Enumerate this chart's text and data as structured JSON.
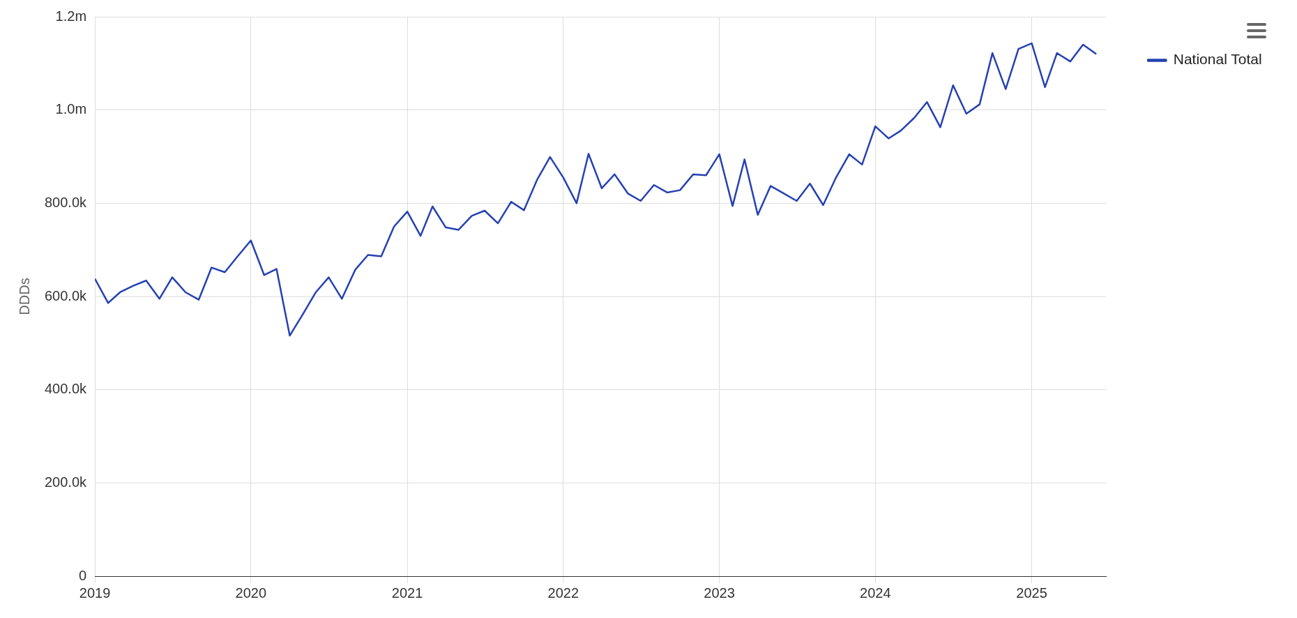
{
  "chart_data": {
    "type": "line",
    "ylabel": "DDDs",
    "x": [
      "2019-01",
      "2019-02",
      "2019-03",
      "2019-04",
      "2019-05",
      "2019-06",
      "2019-07",
      "2019-08",
      "2019-09",
      "2019-10",
      "2019-11",
      "2019-12",
      "2020-01",
      "2020-02",
      "2020-03",
      "2020-04",
      "2020-05",
      "2020-06",
      "2020-07",
      "2020-08",
      "2020-09",
      "2020-10",
      "2020-11",
      "2020-12",
      "2021-01",
      "2021-02",
      "2021-03",
      "2021-04",
      "2021-05",
      "2021-06",
      "2021-07",
      "2021-08",
      "2021-09",
      "2021-10",
      "2021-11",
      "2021-12",
      "2022-01",
      "2022-02",
      "2022-03",
      "2022-04",
      "2022-05",
      "2022-06",
      "2022-07",
      "2022-08",
      "2022-09",
      "2022-10",
      "2022-11",
      "2022-12",
      "2023-01",
      "2023-02",
      "2023-03",
      "2023-04",
      "2023-05",
      "2023-06",
      "2023-07",
      "2023-08",
      "2023-09",
      "2023-10",
      "2023-11",
      "2023-12",
      "2024-01",
      "2024-02",
      "2024-03",
      "2024-04",
      "2024-05",
      "2024-06",
      "2024-07",
      "2024-08",
      "2024-09",
      "2024-10",
      "2024-11",
      "2024-12",
      "2025-01",
      "2025-02",
      "2025-03",
      "2025-04",
      "2025-05",
      "2025-06"
    ],
    "series": [
      {
        "name": "National Total",
        "color": "#2541b2",
        "values": [
          638000,
          586000,
          609000,
          623000,
          634000,
          595000,
          641000,
          609000,
          593000,
          662000,
          652000,
          686000,
          720000,
          646000,
          659000,
          516000,
          561000,
          609000,
          641000,
          595000,
          657000,
          689000,
          686000,
          750000,
          782000,
          730000,
          793000,
          748000,
          743000,
          773000,
          784000,
          757000,
          803000,
          785000,
          851000,
          899000,
          855000,
          800000,
          906000,
          832000,
          862000,
          821000,
          805000,
          839000,
          823000,
          828000,
          862000,
          860000,
          905000,
          794000,
          894000,
          775000,
          837000,
          821000,
          805000,
          842000,
          796000,
          855000,
          905000,
          883000,
          965000,
          939000,
          956000,
          983000,
          1017000,
          963000,
          1053000,
          992000,
          1012000,
          1122000,
          1045000,
          1131000,
          1143000,
          1049000,
          1122000,
          1104000,
          1140000,
          1120000
        ]
      }
    ],
    "xlim": [
      "2019-01-01",
      "2025-06-24"
    ],
    "xticks": [
      {
        "value": "2019",
        "label": "2019"
      },
      {
        "value": "2020",
        "label": "2020"
      },
      {
        "value": "2021",
        "label": "2021"
      },
      {
        "value": "2022",
        "label": "2022"
      },
      {
        "value": "2023",
        "label": "2023"
      },
      {
        "value": "2024",
        "label": "2024"
      },
      {
        "value": "2025",
        "label": "2025"
      }
    ],
    "ylim": [
      0,
      1200000
    ],
    "yticks": [
      0,
      {
        "value": 200000,
        "label": "200.0k"
      },
      {
        "value": 400000,
        "label": "400.0k"
      },
      {
        "value": 600000,
        "label": "600.0k"
      },
      {
        "value": 800000,
        "label": "800.0k"
      },
      {
        "value": 1000000,
        "label": "1.0m"
      },
      {
        "value": 1200000,
        "label": "1.2m"
      }
    ],
    "grid": true,
    "legend": "top right",
    "marker": "none",
    "line_style": "solid"
  }
}
